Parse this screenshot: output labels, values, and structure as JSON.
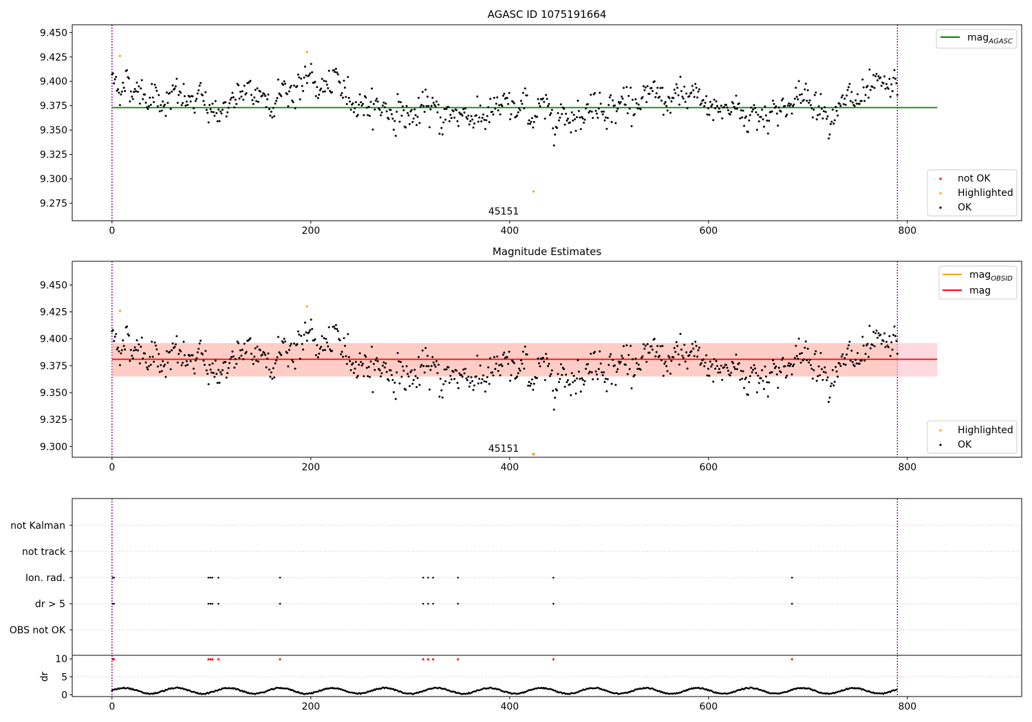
{
  "figure": {
    "panels": {
      "top": {
        "title": "AGASC ID 1075191664",
        "obsid_label": "45151",
        "legend_upper": [
          {
            "label": "mag",
            "sub": "AGASC",
            "color": "#008000"
          }
        ],
        "legend_lower": [
          {
            "label": "not OK",
            "color": "#ff0000"
          },
          {
            "label": "Highlighted",
            "color": "#ffa500"
          },
          {
            "label": "OK",
            "color": "#000000"
          }
        ]
      },
      "middle": {
        "title": "Magnitude Estimates",
        "obsid_label": "45151",
        "legend_upper": [
          {
            "label": "mag",
            "sub": "OBSID",
            "color": "#ffa500"
          },
          {
            "label": "mag",
            "sub": "",
            "color": "#ff0000"
          }
        ],
        "legend_lower": [
          {
            "label": "Highlighted",
            "color": "#ffa500"
          },
          {
            "label": "OK",
            "color": "#000000"
          }
        ]
      },
      "flags": {
        "categories": [
          "not Kalman",
          "not track",
          "Ion. rad.",
          "dr > 5",
          "OBS not OK"
        ]
      },
      "dr": {
        "ylabel": "dr"
      }
    }
  },
  "chart_data": [
    {
      "type": "scatter",
      "title": "AGASC ID 1075191664",
      "xlabel": "",
      "ylabel": "",
      "xlim": [
        -40,
        915
      ],
      "ylim": [
        9.257,
        9.458
      ],
      "xticks": [
        0,
        200,
        400,
        600,
        800
      ],
      "yticks": [
        9.275,
        9.3,
        9.325,
        9.35,
        9.375,
        9.4,
        9.425,
        9.45
      ],
      "hlines": [
        {
          "name": "mag_AGASC",
          "y": 9.373,
          "xrange": [
            0,
            830
          ],
          "color": "#008000"
        }
      ],
      "vlines": [
        0,
        790
      ],
      "annotation": {
        "text": "45151",
        "x": 395
      },
      "highlighted_points": [
        [
          8,
          9.426
        ],
        [
          196,
          9.43
        ],
        [
          424,
          9.287
        ]
      ],
      "ok_series": {
        "n": 790,
        "x_start": 0,
        "x_end": 790,
        "segment_means": [
          [
            0,
            9.402
          ],
          [
            40,
            9.388
          ],
          [
            100,
            9.372
          ],
          [
            160,
            9.388
          ],
          [
            200,
            9.398
          ],
          [
            300,
            9.365
          ],
          [
            370,
            9.368
          ],
          [
            460,
            9.37
          ],
          [
            500,
            9.38
          ],
          [
            580,
            9.378
          ],
          [
            650,
            9.367
          ],
          [
            700,
            9.383
          ],
          [
            730,
            9.372
          ],
          [
            790,
            9.388
          ]
        ],
        "spread": 0.011
      }
    },
    {
      "type": "scatter",
      "title": "Magnitude Estimates",
      "xlim": [
        -40,
        915
      ],
      "ylim": [
        9.29,
        9.472
      ],
      "xticks": [
        0,
        200,
        400,
        600,
        800
      ],
      "yticks": [
        9.3,
        9.325,
        9.35,
        9.375,
        9.4,
        9.425,
        9.45
      ],
      "hlines": [
        {
          "name": "mag",
          "y": 9.381,
          "xrange": [
            0,
            830
          ],
          "color": "#ff0000"
        }
      ],
      "bands": [
        {
          "name": "mag_OBSID band",
          "y": [
            9.365,
            9.396
          ],
          "xrange": [
            0,
            790
          ],
          "color": "#ffa07a"
        },
        {
          "name": "mag band",
          "y": [
            9.365,
            9.396
          ],
          "xrange": [
            790,
            830
          ],
          "color": "#ffc0cb"
        }
      ],
      "vlines": [
        0,
        790
      ],
      "annotation": {
        "text": "45151",
        "x": 395
      },
      "highlighted_points": [
        [
          8,
          9.426
        ],
        [
          196,
          9.43
        ]
      ],
      "offscale_marker": {
        "x": 424,
        "direction": "down",
        "color": "#ffa500"
      }
    },
    {
      "type": "scatter",
      "title": "",
      "xlim": [
        -40,
        915
      ],
      "ylim": [
        -0.5,
        5.5
      ],
      "categories": [
        "OBS not OK",
        "dr > 5",
        "Ion. rad.",
        "not track",
        "not Kalman"
      ],
      "flagged_x": [
        1,
        2,
        97,
        99,
        101,
        107,
        169,
        313,
        318,
        323,
        348,
        444,
        684
      ],
      "rows_with_points": [
        "dr > 5",
        "Ion. rad."
      ]
    },
    {
      "type": "line",
      "title": "",
      "ylabel": "dr",
      "xlim": [
        -40,
        915
      ],
      "ylim": [
        -0.5,
        11
      ],
      "xticks": [
        0,
        200,
        400,
        600,
        800
      ],
      "yticks": [
        0,
        5,
        10
      ],
      "capped_points_y": 10,
      "capped_x": [
        1,
        2,
        97,
        99,
        101,
        107,
        169,
        313,
        318,
        323,
        348,
        444,
        684
      ],
      "dr_range": [
        0.2,
        2.6
      ]
    }
  ]
}
